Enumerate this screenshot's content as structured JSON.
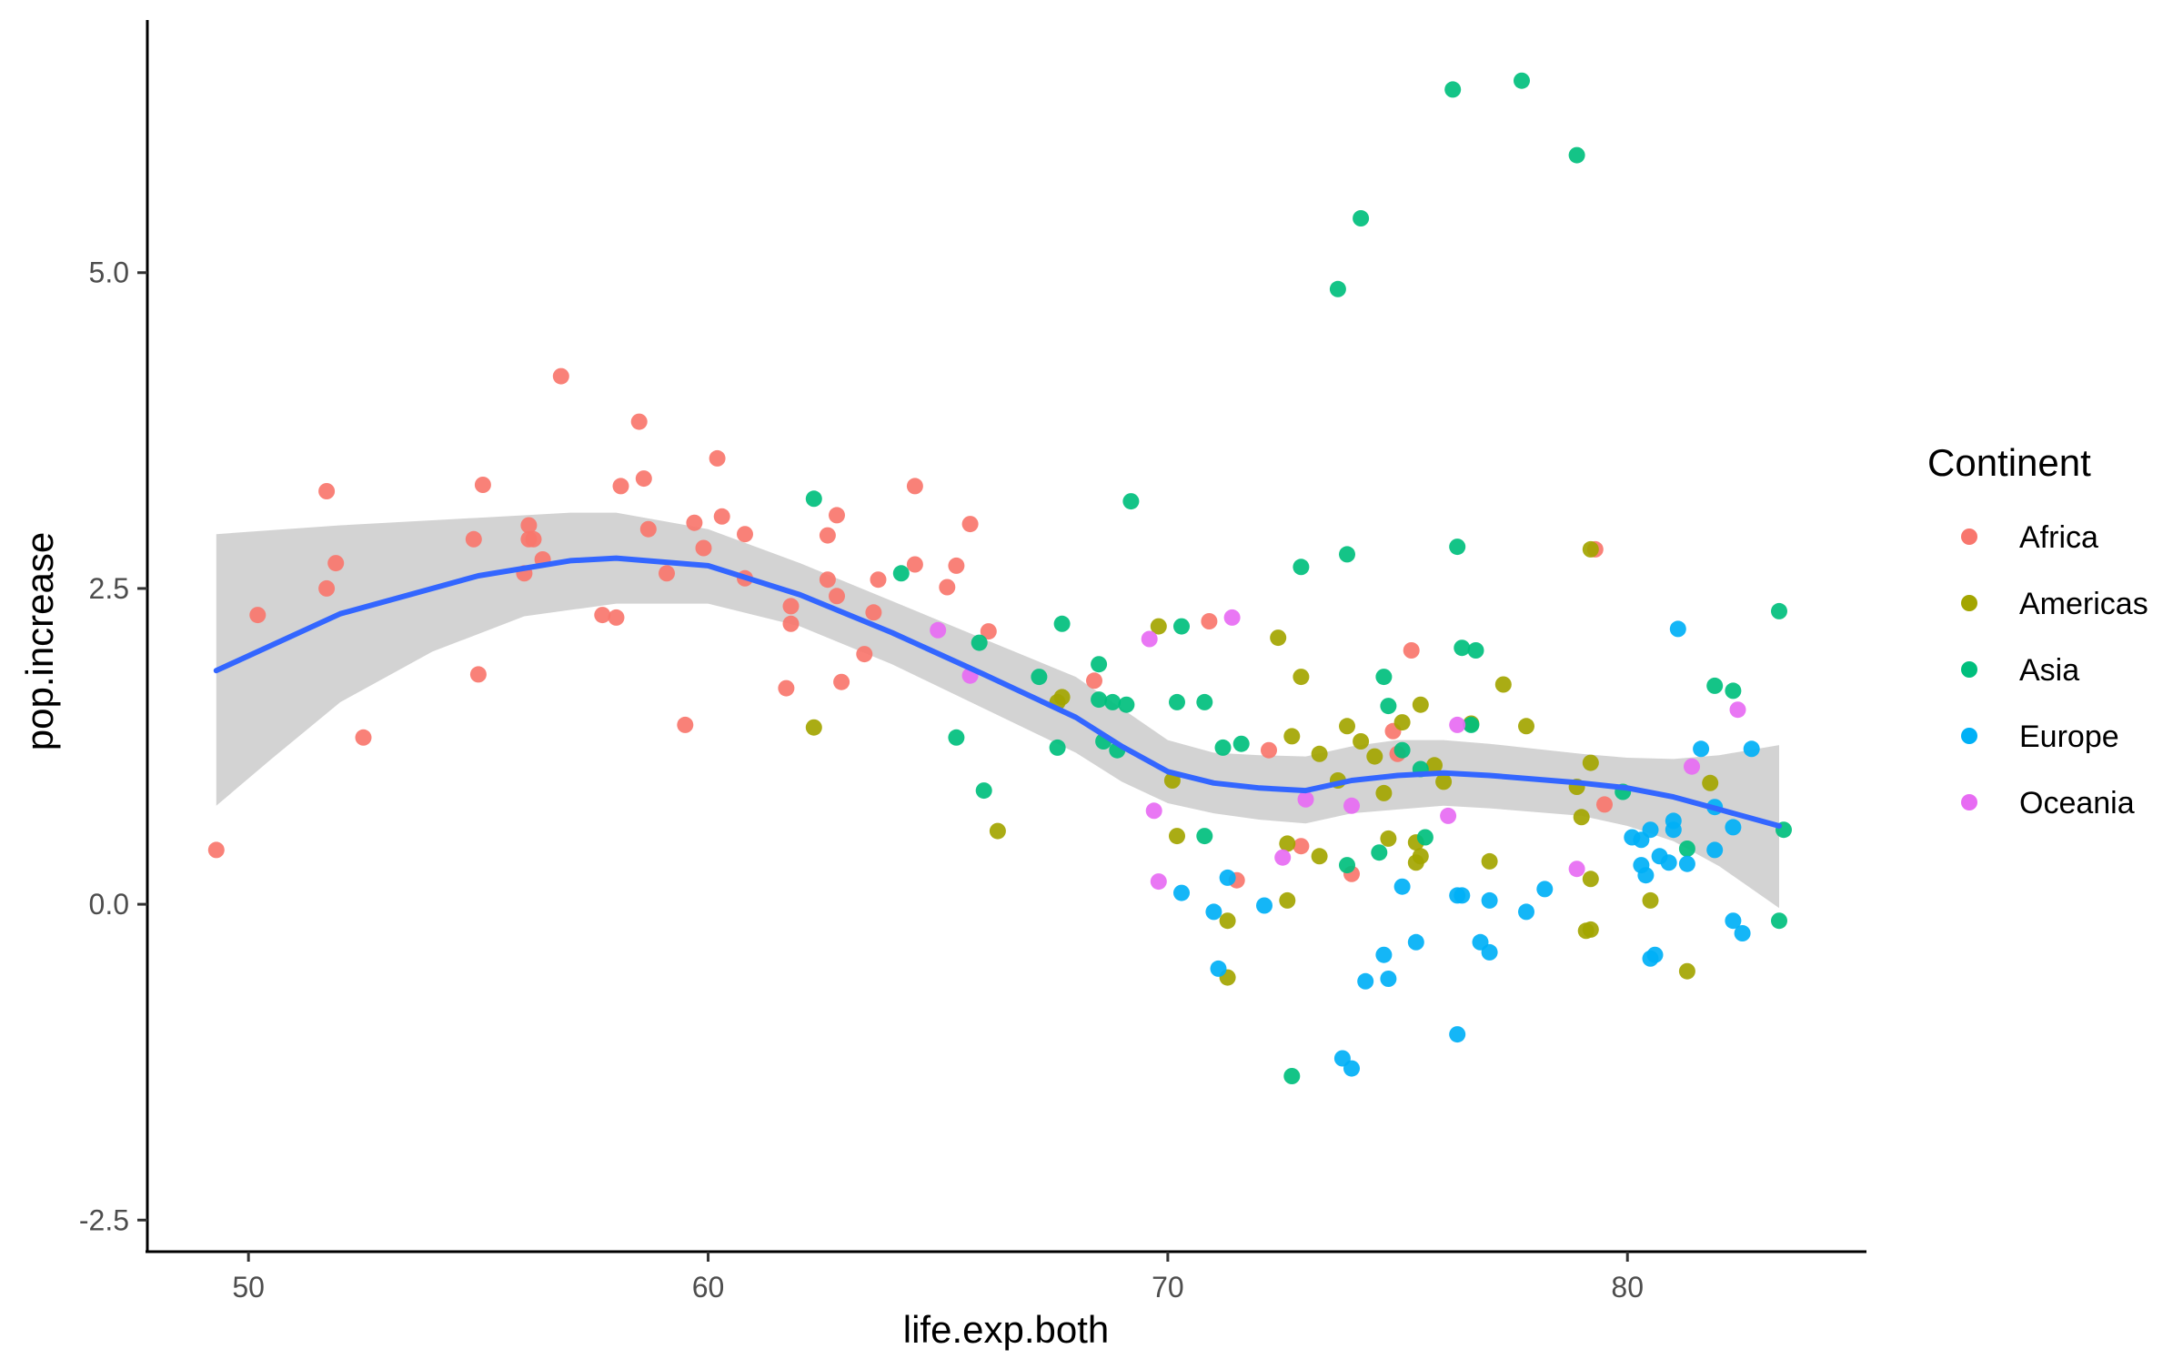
{
  "chart_data": {
    "type": "scatter",
    "xlabel": "life.exp.both",
    "ylabel": "pop.increase",
    "xlim": [
      47.8,
      85.2
    ],
    "ylim": [
      -2.75,
      7.0
    ],
    "x_ticks": [
      50,
      60,
      70,
      80
    ],
    "y_ticks": [
      -2.5,
      0.0,
      2.5,
      5.0
    ],
    "x_tick_labels": [
      "50",
      "60",
      "70",
      "80"
    ],
    "y_tick_labels": [
      "-2.5",
      "0.0",
      "2.5",
      "5.0"
    ],
    "grid": false,
    "legend": {
      "title": "Continent",
      "placement": "right",
      "entries": [
        "Africa",
        "Americas",
        "Asia",
        "Europe",
        "Oceania"
      ]
    },
    "colors": {
      "Africa": "#F8766D",
      "Americas": "#A3A500",
      "Asia": "#00BF7D",
      "Europe": "#00B0F6",
      "Oceania": "#E76BF3",
      "smooth_line": "#3366FF",
      "ribbon": "#D3D3D3"
    },
    "series": [
      {
        "name": "Africa",
        "points": [
          [
            49.3,
            0.43
          ],
          [
            50.2,
            2.29
          ],
          [
            51.7,
            2.5
          ],
          [
            51.7,
            3.27
          ],
          [
            51.9,
            2.7
          ],
          [
            52.5,
            1.32
          ],
          [
            54.9,
            2.89
          ],
          [
            55.0,
            1.82
          ],
          [
            55.1,
            3.32
          ],
          [
            56.0,
            2.62
          ],
          [
            56.1,
            3.0
          ],
          [
            56.1,
            2.89
          ],
          [
            56.2,
            2.89
          ],
          [
            56.4,
            2.73
          ],
          [
            56.8,
            4.18
          ],
          [
            57.7,
            2.29
          ],
          [
            58.0,
            2.27
          ],
          [
            58.1,
            3.31
          ],
          [
            58.5,
            3.82
          ],
          [
            58.6,
            3.37
          ],
          [
            58.7,
            2.97
          ],
          [
            59.1,
            2.62
          ],
          [
            59.5,
            1.42
          ],
          [
            59.7,
            3.02
          ],
          [
            59.9,
            2.82
          ],
          [
            60.2,
            3.53
          ],
          [
            60.3,
            3.07
          ],
          [
            60.8,
            2.58
          ],
          [
            60.8,
            2.93
          ],
          [
            61.7,
            1.71
          ],
          [
            61.8,
            2.36
          ],
          [
            61.8,
            2.22
          ],
          [
            62.6,
            2.57
          ],
          [
            62.6,
            2.92
          ],
          [
            62.8,
            3.08
          ],
          [
            62.9,
            1.76
          ],
          [
            62.8,
            2.44
          ],
          [
            63.4,
            1.98
          ],
          [
            63.6,
            2.31
          ],
          [
            63.7,
            2.57
          ],
          [
            64.5,
            3.31
          ],
          [
            64.5,
            2.69
          ],
          [
            65.2,
            2.51
          ],
          [
            65.4,
            2.68
          ],
          [
            65.7,
            3.01
          ],
          [
            66.1,
            2.16
          ],
          [
            68.4,
            1.77
          ],
          [
            70.9,
            2.24
          ],
          [
            71.5,
            0.19
          ],
          [
            72.2,
            1.22
          ],
          [
            72.9,
            0.46
          ],
          [
            74.0,
            0.24
          ],
          [
            74.9,
            1.37
          ],
          [
            75.0,
            1.19
          ],
          [
            75.3,
            2.01
          ],
          [
            79.3,
            2.81
          ],
          [
            79.5,
            0.79
          ]
        ]
      },
      {
        "name": "Americas",
        "points": [
          [
            62.3,
            1.4
          ],
          [
            66.3,
            0.58
          ],
          [
            67.6,
            1.6
          ],
          [
            67.7,
            1.64
          ],
          [
            69.8,
            2.2
          ],
          [
            70.1,
            0.98
          ],
          [
            70.2,
            0.54
          ],
          [
            71.3,
            -0.13
          ],
          [
            71.3,
            -0.58
          ],
          [
            72.4,
            2.11
          ],
          [
            72.6,
            0.48
          ],
          [
            72.6,
            0.03
          ],
          [
            72.7,
            1.33
          ],
          [
            72.9,
            1.8
          ],
          [
            73.3,
            1.19
          ],
          [
            73.3,
            0.38
          ],
          [
            73.7,
            0.98
          ],
          [
            73.9,
            1.41
          ],
          [
            74.2,
            1.29
          ],
          [
            74.5,
            1.17
          ],
          [
            74.7,
            0.88
          ],
          [
            74.8,
            0.52
          ],
          [
            75.1,
            1.44
          ],
          [
            75.4,
            0.33
          ],
          [
            75.4,
            0.49
          ],
          [
            75.5,
            0.38
          ],
          [
            75.5,
            1.58
          ],
          [
            75.8,
            1.1
          ],
          [
            76.0,
            0.97
          ],
          [
            76.6,
            1.43
          ],
          [
            77.0,
            0.34
          ],
          [
            77.3,
            1.74
          ],
          [
            77.8,
            1.41
          ],
          [
            78.9,
            0.93
          ],
          [
            79.0,
            0.69
          ],
          [
            79.1,
            -0.21
          ],
          [
            79.2,
            -0.2
          ],
          [
            79.2,
            0.2
          ],
          [
            79.2,
            1.12
          ],
          [
            79.2,
            2.81
          ],
          [
            80.5,
            0.03
          ],
          [
            81.3,
            -0.53
          ],
          [
            81.8,
            0.96
          ]
        ]
      },
      {
        "name": "Asia",
        "points": [
          [
            62.3,
            3.21
          ],
          [
            64.2,
            2.62
          ],
          [
            65.4,
            1.32
          ],
          [
            65.9,
            2.07
          ],
          [
            66.0,
            0.9
          ],
          [
            67.2,
            1.8
          ],
          [
            67.6,
            1.24
          ],
          [
            67.7,
            2.22
          ],
          [
            68.5,
            1.9
          ],
          [
            68.5,
            1.62
          ],
          [
            68.6,
            1.29
          ],
          [
            68.8,
            1.6
          ],
          [
            68.9,
            1.22
          ],
          [
            69.1,
            1.58
          ],
          [
            69.2,
            3.19
          ],
          [
            70.2,
            1.6
          ],
          [
            70.3,
            2.2
          ],
          [
            70.8,
            1.6
          ],
          [
            70.8,
            0.54
          ],
          [
            71.2,
            1.24
          ],
          [
            71.6,
            1.27
          ],
          [
            72.7,
            -1.36
          ],
          [
            72.9,
            2.67
          ],
          [
            73.7,
            4.87
          ],
          [
            73.9,
            0.31
          ],
          [
            73.9,
            2.77
          ],
          [
            74.2,
            5.43
          ],
          [
            74.6,
            0.41
          ],
          [
            74.7,
            1.8
          ],
          [
            74.8,
            1.57
          ],
          [
            75.1,
            1.22
          ],
          [
            75.5,
            1.07
          ],
          [
            75.6,
            0.53
          ],
          [
            76.2,
            6.45
          ],
          [
            76.3,
            2.83
          ],
          [
            76.4,
            2.03
          ],
          [
            76.6,
            1.42
          ],
          [
            76.7,
            2.01
          ],
          [
            77.7,
            6.52
          ],
          [
            78.9,
            5.93
          ],
          [
            79.9,
            0.89
          ],
          [
            81.3,
            0.44
          ],
          [
            81.9,
            1.73
          ],
          [
            82.3,
            1.69
          ],
          [
            83.3,
            2.32
          ],
          [
            83.3,
            -0.13
          ],
          [
            83.4,
            0.59
          ]
        ]
      },
      {
        "name": "Europe",
        "points": [
          [
            70.3,
            0.09
          ],
          [
            71.0,
            -0.06
          ],
          [
            71.1,
            -0.51
          ],
          [
            71.3,
            0.21
          ],
          [
            72.1,
            -0.01
          ],
          [
            73.8,
            -1.22
          ],
          [
            74.0,
            -1.3
          ],
          [
            74.3,
            -0.61
          ],
          [
            74.7,
            -0.4
          ],
          [
            74.8,
            -0.59
          ],
          [
            75.1,
            0.14
          ],
          [
            75.4,
            -0.3
          ],
          [
            76.3,
            -1.03
          ],
          [
            76.3,
            0.07
          ],
          [
            76.4,
            0.07
          ],
          [
            76.8,
            -0.3
          ],
          [
            77.0,
            0.03
          ],
          [
            77.0,
            -0.38
          ],
          [
            77.8,
            -0.06
          ],
          [
            78.2,
            0.12
          ],
          [
            80.1,
            0.53
          ],
          [
            80.3,
            0.31
          ],
          [
            80.3,
            0.51
          ],
          [
            80.4,
            0.23
          ],
          [
            80.5,
            0.59
          ],
          [
            80.5,
            -0.43
          ],
          [
            80.6,
            -0.4
          ],
          [
            80.7,
            0.38
          ],
          [
            80.9,
            0.33
          ],
          [
            81.0,
            0.59
          ],
          [
            81.0,
            0.66
          ],
          [
            81.1,
            2.18
          ],
          [
            81.3,
            0.32
          ],
          [
            81.6,
            1.23
          ],
          [
            81.9,
            0.77
          ],
          [
            81.9,
            0.43
          ],
          [
            82.3,
            -0.13
          ],
          [
            82.3,
            0.61
          ],
          [
            82.5,
            -0.23
          ],
          [
            82.7,
            1.23
          ]
        ]
      },
      {
        "name": "Oceania",
        "points": [
          [
            65.0,
            2.17
          ],
          [
            65.7,
            1.81
          ],
          [
            69.6,
            2.1
          ],
          [
            69.7,
            0.74
          ],
          [
            69.8,
            0.18
          ],
          [
            71.4,
            2.27
          ],
          [
            72.5,
            0.37
          ],
          [
            73.0,
            0.83
          ],
          [
            74.0,
            0.78
          ],
          [
            76.1,
            0.7
          ],
          [
            76.3,
            1.42
          ],
          [
            78.9,
            0.28
          ],
          [
            81.4,
            1.09
          ],
          [
            82.4,
            1.54
          ]
        ]
      }
    ],
    "smooth": {
      "method": "loess",
      "line": [
        [
          49.3,
          1.85
        ],
        [
          52.0,
          2.3
        ],
        [
          55.0,
          2.6
        ],
        [
          57.0,
          2.72
        ],
        [
          58.0,
          2.74
        ],
        [
          60.0,
          2.68
        ],
        [
          62.0,
          2.45
        ],
        [
          64.0,
          2.15
        ],
        [
          66.0,
          1.82
        ],
        [
          68.0,
          1.48
        ],
        [
          69.0,
          1.25
        ],
        [
          70.0,
          1.05
        ],
        [
          71.0,
          0.96
        ],
        [
          72.0,
          0.92
        ],
        [
          73.0,
          0.9
        ],
        [
          74.0,
          0.98
        ],
        [
          75.0,
          1.02
        ],
        [
          76.0,
          1.04
        ],
        [
          77.0,
          1.02
        ],
        [
          78.0,
          0.99
        ],
        [
          79.0,
          0.96
        ],
        [
          80.0,
          0.92
        ],
        [
          81.0,
          0.85
        ],
        [
          82.0,
          0.75
        ],
        [
          83.3,
          0.62
        ]
      ],
      "ribbon_upper": [
        [
          49.3,
          2.93
        ],
        [
          52.0,
          3.0
        ],
        [
          55.0,
          3.06
        ],
        [
          57.0,
          3.1
        ],
        [
          58.0,
          3.1
        ],
        [
          60.0,
          2.97
        ],
        [
          62.0,
          2.7
        ],
        [
          64.0,
          2.4
        ],
        [
          66.0,
          2.1
        ],
        [
          68.0,
          1.8
        ],
        [
          69.0,
          1.55
        ],
        [
          70.0,
          1.3
        ],
        [
          71.0,
          1.2
        ],
        [
          72.0,
          1.18
        ],
        [
          73.0,
          1.17
        ],
        [
          74.0,
          1.25
        ],
        [
          75.0,
          1.3
        ],
        [
          76.0,
          1.3
        ],
        [
          77.0,
          1.27
        ],
        [
          78.0,
          1.23
        ],
        [
          79.0,
          1.19
        ],
        [
          80.0,
          1.16
        ],
        [
          81.0,
          1.15
        ],
        [
          82.0,
          1.18
        ],
        [
          83.3,
          1.26
        ]
      ],
      "ribbon_lower": [
        [
          49.3,
          0.78
        ],
        [
          50.5,
          1.15
        ],
        [
          52.0,
          1.6
        ],
        [
          54.0,
          2.0
        ],
        [
          56.0,
          2.28
        ],
        [
          58.0,
          2.38
        ],
        [
          60.0,
          2.38
        ],
        [
          62.0,
          2.2
        ],
        [
          64.0,
          1.9
        ],
        [
          66.0,
          1.55
        ],
        [
          68.0,
          1.2
        ],
        [
          69.0,
          0.97
        ],
        [
          70.0,
          0.8
        ],
        [
          71.0,
          0.72
        ],
        [
          72.0,
          0.67
        ],
        [
          73.0,
          0.64
        ],
        [
          74.0,
          0.72
        ],
        [
          75.0,
          0.75
        ],
        [
          76.0,
          0.78
        ],
        [
          77.0,
          0.76
        ],
        [
          78.0,
          0.73
        ],
        [
          79.0,
          0.7
        ],
        [
          80.0,
          0.62
        ],
        [
          81.0,
          0.5
        ],
        [
          82.0,
          0.3
        ],
        [
          83.3,
          -0.03
        ]
      ]
    }
  }
}
